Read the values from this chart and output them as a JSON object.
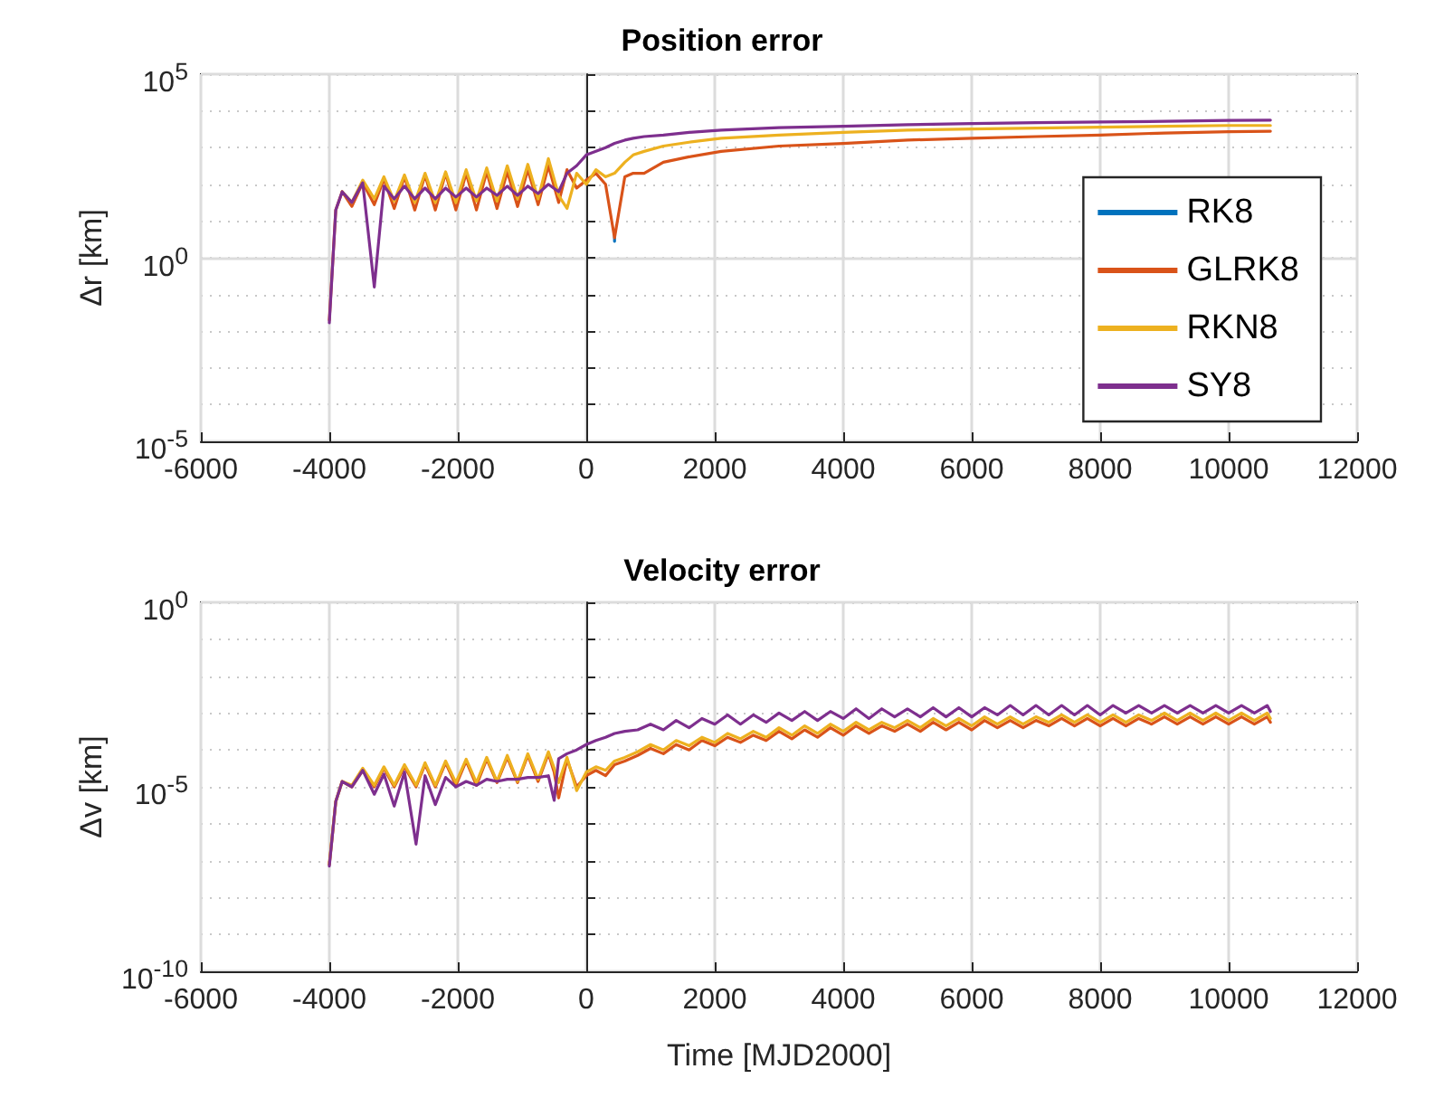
{
  "chart_data": [
    {
      "type": "line",
      "title": "Position error",
      "ylabel": "Δr [km]",
      "log": "y",
      "grid": true,
      "legend": "right",
      "xlim": [
        -6000,
        12000
      ],
      "xticks": [
        -6000,
        -4000,
        -2000,
        0,
        2000,
        4000,
        6000,
        8000,
        10000,
        12000
      ],
      "ylim": [
        1e-05,
        100000
      ],
      "yticks": [
        {
          "value": 1e-05,
          "label": "10$^{-5}$"
        },
        {
          "value": 0.0001,
          "label": null
        },
        {
          "value": 0.001,
          "label": null
        },
        {
          "value": 0.01,
          "label": null
        },
        {
          "value": 0.1,
          "label": null
        },
        {
          "value": 1,
          "label": "10$^{0}$"
        },
        {
          "value": 10,
          "label": null
        },
        {
          "value": 100,
          "label": null
        },
        {
          "value": 1000,
          "label": null
        },
        {
          "value": 10000,
          "label": null
        },
        {
          "value": 100000,
          "label": "10$^{5}$"
        }
      ],
      "x": [
        -4000,
        -3900,
        -3800,
        -3650,
        -3480,
        -3300,
        -3150,
        -2990,
        -2830,
        -2670,
        -2510,
        -2350,
        -2190,
        -2030,
        -1870,
        -1710,
        -1550,
        -1390,
        -1230,
        -1070,
        -910,
        -750,
        -590,
        -430,
        -300,
        -150,
        0,
        150,
        300,
        440,
        600,
        730,
        900,
        1200,
        1600,
        2100,
        3000,
        4000,
        5000,
        6000,
        7000,
        8000,
        9000,
        10000,
        10650
      ],
      "series": [
        {
          "name": "RK8",
          "color": "#0072bd",
          "x": [
            440,
            440
          ],
          "values": [
            4.0,
            2.8
          ]
        },
        {
          "name": "GLRK8",
          "color": "#d95319",
          "values": [
            0.02,
            20,
            63,
            25,
            110,
            28,
            140,
            22,
            160,
            20,
            180,
            20,
            200,
            20,
            200,
            20,
            220,
            22,
            220,
            25,
            250,
            28,
            320,
            32,
            250,
            79,
            130,
            200,
            100,
            3.5,
            160,
            200,
            200,
            400,
            560,
            790,
            1100,
            1300,
            1600,
            1800,
            2000,
            2200,
            2500,
            2700,
            2800
          ]
        },
        {
          "name": "RKN8",
          "color": "#edb120",
          "values": [
            null,
            null,
            63,
            32,
            130,
            40,
            160,
            35,
            180,
            32,
            200,
            32,
            220,
            32,
            250,
            35,
            280,
            35,
            320,
            40,
            350,
            40,
            500,
            50,
            22,
            200,
            100,
            250,
            160,
            200,
            400,
            630,
            790,
            1100,
            1400,
            1800,
            2200,
            2600,
            3000,
            3200,
            3400,
            3600,
            3800,
            4000,
            4000
          ]
        },
        {
          "name": "SY8",
          "color": "#7e2f8e",
          "values": [
            0.017,
            20,
            63,
            32,
            110,
            0.16,
            89,
            40,
            89,
            40,
            79,
            40,
            79,
            45,
            79,
            45,
            79,
            50,
            89,
            50,
            89,
            56,
            100,
            63,
            200,
            320,
            630,
            790,
            1000,
            1300,
            1600,
            1800,
            2000,
            2200,
            2600,
            3000,
            3500,
            3800,
            4200,
            4500,
            4800,
            5000,
            5200,
            5500,
            5600
          ]
        }
      ]
    },
    {
      "type": "line",
      "title": "Velocity error",
      "ylabel": "Δv [km]",
      "xlabel": "Time [MJD2000]",
      "log": "y",
      "grid": true,
      "xlim": [
        -6000,
        12000
      ],
      "xticks": [
        -6000,
        -4000,
        -2000,
        0,
        2000,
        4000,
        6000,
        8000,
        10000,
        12000
      ],
      "ylim": [
        1e-10,
        1
      ],
      "yticks": [
        {
          "value": 1e-10,
          "label": "10$^{-10}$"
        },
        {
          "value": 1e-09,
          "label": null
        },
        {
          "value": 1e-08,
          "label": null
        },
        {
          "value": 1e-07,
          "label": null
        },
        {
          "value": 1e-06,
          "label": null
        },
        {
          "value": 1e-05,
          "label": "10$^{-5}$"
        },
        {
          "value": 0.0001,
          "label": null
        },
        {
          "value": 0.001,
          "label": null
        },
        {
          "value": 0.01,
          "label": null
        },
        {
          "value": 0.1,
          "label": null
        },
        {
          "value": 1,
          "label": "10$^{0}$"
        }
      ],
      "x": [
        -4000,
        -3900,
        -3800,
        -3650,
        -3480,
        -3300,
        -3150,
        -2990,
        -2830,
        -2650,
        -2510,
        -2350,
        -2190,
        -2030,
        -1870,
        -1710,
        -1550,
        -1390,
        -1230,
        -1070,
        -910,
        -750,
        -590,
        -500,
        -430,
        -300,
        -150,
        0,
        150,
        300,
        440,
        600,
        800,
        1000,
        1200,
        1400,
        1600,
        1800,
        2000,
        2200,
        2400,
        2600,
        2800,
        3000,
        3200,
        3400,
        3600,
        3800,
        4000,
        4200,
        4400,
        4600,
        4800,
        5000,
        5200,
        5400,
        5600,
        5800,
        6000,
        6200,
        6400,
        6600,
        6800,
        7000,
        7200,
        7400,
        7600,
        7800,
        8000,
        8200,
        8400,
        8600,
        8800,
        9000,
        9200,
        9400,
        9600,
        9800,
        10000,
        10200,
        10400,
        10600,
        10650
      ],
      "series": [
        {
          "color": "#d95319",
          "values": [
            7.9e-08,
            4e-06,
            1.4e-05,
            1e-05,
            2.8e-05,
            1e-05,
            3.2e-05,
            1e-05,
            3.5e-05,
            1e-05,
            4e-05,
            1e-05,
            4.5e-05,
            1.1e-05,
            5e-05,
            1.1e-05,
            5.6e-05,
            1.3e-05,
            6.3e-05,
            1.3e-05,
            7.1e-05,
            1.4e-05,
            7.9e-05,
            2.5e-05,
            5e-06,
            5.6e-05,
            1e-05,
            2e-05,
            2.8e-05,
            2e-05,
            4e-05,
            5e-05,
            7.1e-05,
            0.00011,
            7.9e-05,
            0.00014,
            0.0001,
            0.00018,
            0.00013,
            0.00022,
            0.00016,
            0.00025,
            0.00018,
            0.00032,
            0.0002,
            0.00035,
            0.00022,
            0.0004,
            0.00025,
            0.00045,
            0.00028,
            0.00045,
            0.00032,
            0.0005,
            0.00032,
            0.00056,
            0.00035,
            0.00056,
            0.00035,
            0.00063,
            0.0004,
            0.00063,
            0.0004,
            0.00063,
            0.00045,
            0.00071,
            0.00045,
            0.00071,
            0.00045,
            0.00071,
            0.00045,
            0.00071,
            0.0005,
            0.00079,
            0.0005,
            0.00079,
            0.0005,
            0.00079,
            0.0005,
            0.00079,
            0.0005,
            0.00079,
            0.00056
          ]
        },
        {
          "color": "#edb120",
          "values": [
            7.9e-08,
            4e-06,
            1.4e-05,
            1.1e-05,
            3.2e-05,
            1.1e-05,
            3.5e-05,
            1.1e-05,
            4e-05,
            1.1e-05,
            4.5e-05,
            1.1e-05,
            5e-05,
            1.3e-05,
            5.6e-05,
            1.3e-05,
            6.3e-05,
            1.4e-05,
            7.1e-05,
            1.4e-05,
            7.9e-05,
            1.6e-05,
            8.9e-05,
            3.2e-05,
            1.3e-05,
            6.3e-05,
            7.9e-06,
            2.5e-05,
            3.5e-05,
            2.8e-05,
            5e-05,
            6.3e-05,
            8.9e-05,
            0.00014,
            0.0001,
            0.00018,
            0.00013,
            0.00022,
            0.00016,
            0.00028,
            0.0002,
            0.00032,
            0.00022,
            0.0004,
            0.00025,
            0.00045,
            0.00028,
            0.0005,
            0.00032,
            0.00056,
            0.00035,
            0.00056,
            0.0004,
            0.00063,
            0.0004,
            0.00071,
            0.00045,
            0.00071,
            0.00045,
            0.00079,
            0.0005,
            0.00079,
            0.0005,
            0.00079,
            0.00056,
            0.00089,
            0.00056,
            0.00089,
            0.00056,
            0.00089,
            0.00056,
            0.00089,
            0.00063,
            0.001,
            0.00063,
            0.001,
            0.00063,
            0.001,
            0.00063,
            0.001,
            0.00063,
            0.001,
            0.00071
          ]
        },
        {
          "color": "#7e2f8e",
          "values": [
            7.1e-08,
            4e-06,
            1.4e-05,
            1e-05,
            2.8e-05,
            6.3e-06,
            2.2e-05,
            3e-06,
            2.5e-05,
            2.8e-07,
            2e-05,
            3.3e-06,
            1.8e-05,
            1e-05,
            1.4e-05,
            1.1e-05,
            1.6e-05,
            1.4e-05,
            1.6e-05,
            1.6e-05,
            1.8e-05,
            1.8e-05,
            2e-05,
            4.3e-06,
            5.8e-05,
            7.9e-05,
            0.0001,
            0.00014,
            0.00018,
            0.00022,
            0.00028,
            0.00032,
            0.00035,
            0.0005,
            0.00035,
            0.00063,
            0.0004,
            0.00071,
            0.0005,
            0.00089,
            0.0005,
            0.00089,
            0.00056,
            0.001,
            0.00063,
            0.0011,
            0.00063,
            0.0011,
            0.00071,
            0.0013,
            0.00071,
            0.0013,
            0.00079,
            0.0013,
            0.00079,
            0.0014,
            0.00079,
            0.0014,
            0.00079,
            0.0014,
            0.00089,
            0.0016,
            0.00089,
            0.0016,
            0.00089,
            0.0016,
            0.00089,
            0.0016,
            0.00089,
            0.0016,
            0.001,
            0.0016,
            0.001,
            0.0016,
            0.001,
            0.0016,
            0.001,
            0.0016,
            0.001,
            0.0016,
            0.001,
            0.0016,
            0.0011
          ]
        }
      ]
    }
  ]
}
